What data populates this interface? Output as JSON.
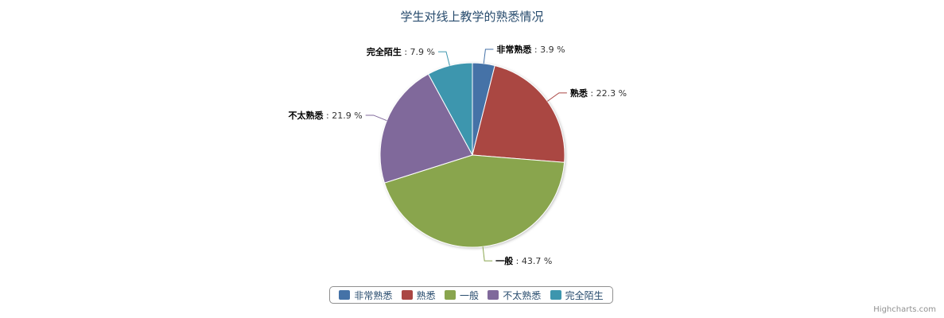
{
  "chart_data": {
    "type": "pie",
    "title": "学生对线上教学的熟悉情况",
    "slices": [
      {
        "label": "非常熟悉",
        "value": 3.9,
        "display": "3.9 %",
        "color": "#4572a7"
      },
      {
        "label": "熟悉",
        "value": 22.3,
        "display": "22.3 %",
        "color": "#aa4643"
      },
      {
        "label": "一般",
        "value": 43.7,
        "display": "43.7 %",
        "color": "#89a54e"
      },
      {
        "label": "不太熟悉",
        "value": 21.9,
        "display": "21.9 %",
        "color": "#80699b"
      },
      {
        "label": "完全陌生",
        "value": 7.9,
        "display": "7.9 %",
        "color": "#3d96ae"
      }
    ],
    "legend_position": "bottom"
  },
  "credit": "Highcharts.com"
}
